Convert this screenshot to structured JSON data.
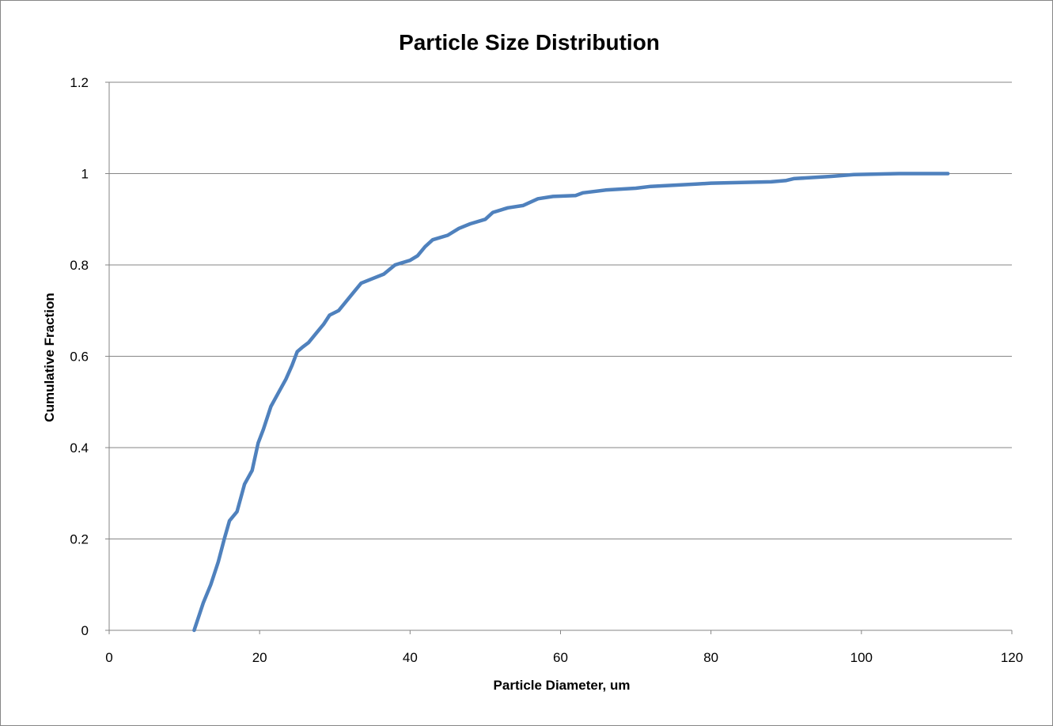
{
  "chart_data": {
    "type": "line",
    "title": "Particle Size Distribution",
    "xlabel": "Particle Diameter, um",
    "ylabel": "Cumulative Fraction",
    "xlim": [
      0,
      120
    ],
    "ylim": [
      0,
      1.2
    ],
    "x_ticks": [
      "0",
      "20",
      "40",
      "60",
      "80",
      "100",
      "120"
    ],
    "y_ticks": [
      "0",
      "0.2",
      "0.4",
      "0.6",
      "0.8",
      "1",
      "1.2"
    ],
    "grid": "horizontal",
    "legend": "none",
    "series": [
      {
        "color": "#4F81BD",
        "x": [
          11.3,
          12.5,
          13.5,
          14.5,
          15.3,
          16.0,
          17.0,
          18.0,
          19.0,
          19.8,
          20.5,
          21.5,
          22.5,
          23.5,
          24.3,
          25.0,
          25.7,
          26.5,
          27.5,
          28.5,
          29.3,
          30.5,
          31.5,
          32.5,
          33.5,
          35.0,
          36.5,
          38.0,
          40.0,
          41.0,
          42.0,
          43.0,
          45.0,
          46.5,
          48.0,
          50.0,
          51.0,
          53.0,
          55.0,
          57.0,
          59.0,
          62.0,
          63.0,
          66.0,
          70.0,
          72.0,
          78.0,
          80.0,
          88.0,
          90.0,
          91.0,
          96.0,
          99.0,
          105.0,
          111.5
        ],
        "y": [
          0.0,
          0.06,
          0.1,
          0.15,
          0.2,
          0.24,
          0.26,
          0.32,
          0.35,
          0.41,
          0.44,
          0.49,
          0.52,
          0.55,
          0.58,
          0.61,
          0.62,
          0.63,
          0.65,
          0.67,
          0.69,
          0.7,
          0.72,
          0.74,
          0.76,
          0.77,
          0.78,
          0.8,
          0.81,
          0.82,
          0.84,
          0.855,
          0.865,
          0.88,
          0.89,
          0.9,
          0.915,
          0.925,
          0.93,
          0.945,
          0.95,
          0.952,
          0.958,
          0.964,
          0.968,
          0.972,
          0.977,
          0.979,
          0.982,
          0.985,
          0.989,
          0.994,
          0.998,
          1.0,
          1.0
        ]
      }
    ]
  }
}
